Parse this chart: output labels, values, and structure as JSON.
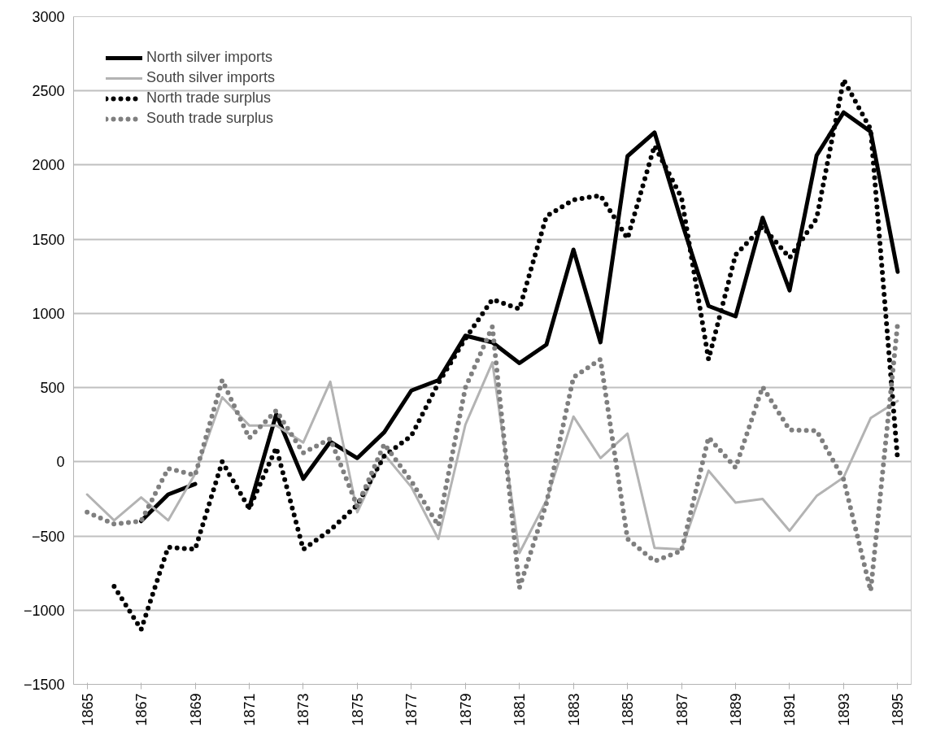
{
  "chart_data": {
    "type": "line",
    "categories": [
      "1865",
      null,
      "1867",
      null,
      "1869",
      null,
      "1871",
      null,
      "1873",
      null,
      "1875",
      null,
      "1877",
      null,
      "1879",
      null,
      "1881",
      null,
      "1883",
      null,
      "1885",
      null,
      "1887",
      null,
      "1889",
      null,
      "1891",
      null,
      "1893",
      null,
      "1895"
    ],
    "series": [
      {
        "name": "North silver imports",
        "color": "#000000",
        "line_style": "solid",
        "values": [
          null,
          null,
          -400,
          -220,
          -150,
          null,
          -310,
          320,
          -115,
          135,
          25,
          200,
          480,
          550,
          850,
          805,
          665,
          790,
          1430,
          805,
          2060,
          2220,
          1620,
          1050,
          980,
          1645,
          1155,
          2065,
          2355,
          2225,
          1280
        ]
      },
      {
        "name": "South silver imports",
        "color": "#b3b3b3",
        "line_style": "solid",
        "values": [
          -220,
          -395,
          -240,
          -395,
          -80,
          435,
          245,
          245,
          130,
          540,
          -340,
          50,
          -170,
          -520,
          250,
          670,
          -615,
          -260,
          305,
          25,
          190,
          -580,
          -590,
          -60,
          -275,
          -250,
          -465,
          -230,
          -105,
          295,
          410
        ]
      },
      {
        "name": "North trade surplus",
        "color": "#000000",
        "line_style": "dotted",
        "values": [
          null,
          -840,
          -1130,
          -575,
          -590,
          0,
          -315,
          95,
          -590,
          -460,
          -290,
          40,
          175,
          530,
          830,
          1095,
          1030,
          1655,
          1765,
          1795,
          1505,
          2130,
          1780,
          690,
          1395,
          1585,
          1375,
          1640,
          2575,
          2240,
          10
        ]
      },
      {
        "name": "South trade surplus",
        "color": "#7f7f7f",
        "line_style": "dotted",
        "values": [
          -340,
          -420,
          -400,
          -45,
          -90,
          550,
          160,
          345,
          60,
          155,
          -300,
          120,
          -130,
          -430,
          500,
          910,
          -850,
          -280,
          570,
          690,
          -520,
          -670,
          -600,
          165,
          -40,
          505,
          215,
          210,
          -120,
          -870,
          935
        ]
      }
    ],
    "ylim": [
      -1500,
      3000
    ],
    "yticks": [
      -1500,
      -1000,
      -500,
      0,
      500,
      1000,
      1500,
      2000,
      2500,
      3000
    ],
    "grid": "y",
    "legend": "top left"
  }
}
